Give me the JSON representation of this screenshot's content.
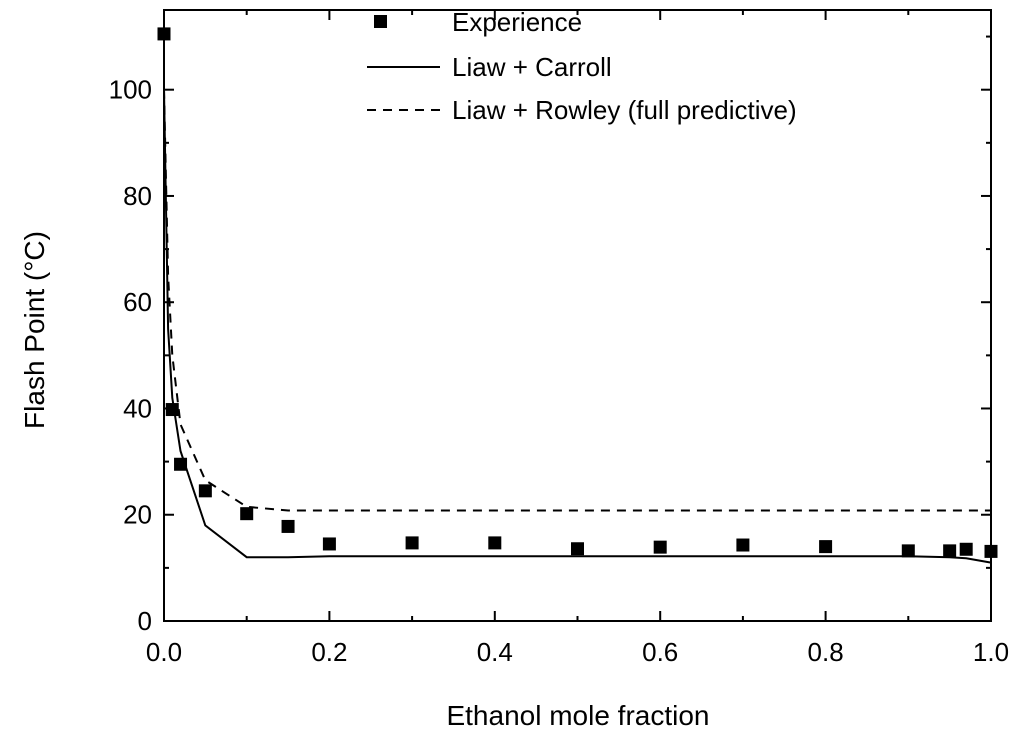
{
  "chart_data": {
    "type": "line",
    "title": "",
    "xlabel": "Ethanol mole fraction",
    "ylabel": "Flash Point (°C)",
    "xlim": [
      0.0,
      1.0
    ],
    "ylim": [
      0,
      115
    ],
    "xticks": [
      0.0,
      0.2,
      0.4,
      0.6,
      0.8,
      1.0
    ],
    "xtick_labels": [
      "0.0",
      "0.2",
      "0.4",
      "0.6",
      "0.8",
      "1.0"
    ],
    "yticks": [
      0,
      20,
      40,
      60,
      80,
      100
    ],
    "ytick_labels": [
      "0",
      "20",
      "40",
      "60",
      "80",
      "100"
    ],
    "grid": false,
    "legend_position": "top-center",
    "series": [
      {
        "name": "Experience",
        "style": "square-markers",
        "color": "#000000",
        "x": [
          0.0,
          0.01,
          0.02,
          0.05,
          0.1,
          0.15,
          0.2,
          0.3,
          0.4,
          0.5,
          0.6,
          0.7,
          0.8,
          0.9,
          0.95,
          0.97,
          1.0
        ],
        "y": [
          110.5,
          39.8,
          29.5,
          24.5,
          20.2,
          17.8,
          14.5,
          14.7,
          14.7,
          13.6,
          13.9,
          14.3,
          14.0,
          13.2,
          13.2,
          13.5,
          13.1
        ]
      },
      {
        "name": "Liaw + Carroll",
        "style": "solid",
        "color": "#000000",
        "x": [
          0.0,
          0.005,
          0.01,
          0.02,
          0.05,
          0.1,
          0.15,
          0.2,
          0.4,
          0.6,
          0.8,
          0.9,
          0.95,
          0.97,
          1.0
        ],
        "y": [
          100,
          55,
          42,
          32,
          18,
          12,
          12,
          12.2,
          12.2,
          12.2,
          12.2,
          12.2,
          12,
          11.8,
          11
        ]
      },
      {
        "name": "Liaw + Rowley (full predictive)",
        "style": "dashed",
        "color": "#000000",
        "x": [
          0.0,
          0.005,
          0.01,
          0.02,
          0.05,
          0.1,
          0.15,
          0.2,
          0.4,
          0.6,
          0.8,
          0.9,
          0.95,
          1.0
        ],
        "y": [
          100,
          65,
          50,
          37,
          26.5,
          21.5,
          20.8,
          20.8,
          20.8,
          20.8,
          20.8,
          20.8,
          20.8,
          20.8
        ]
      }
    ]
  }
}
